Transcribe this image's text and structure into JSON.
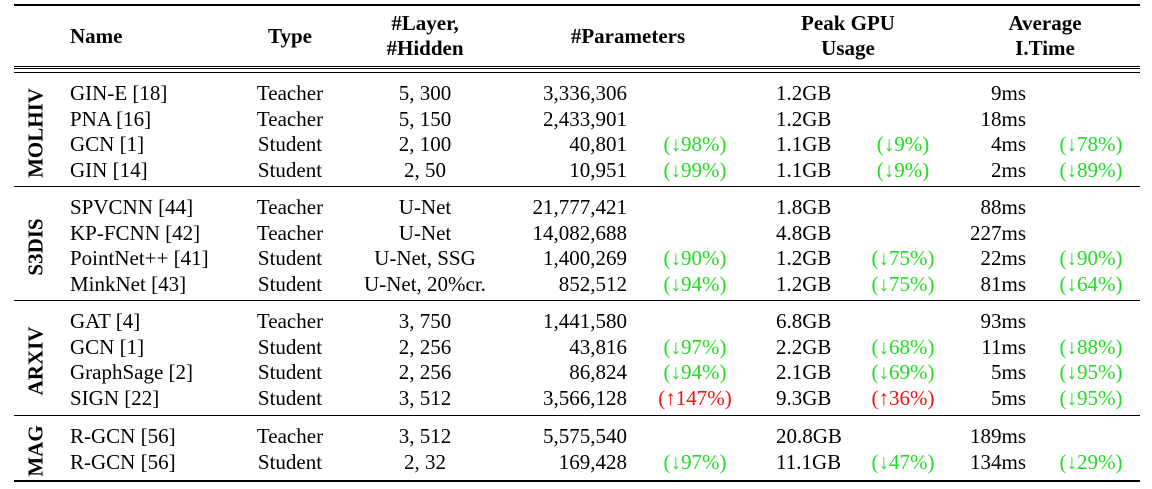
{
  "header": {
    "name": "Name",
    "type": "Type",
    "layer_1": "#Layer,",
    "layer_2": "#Hidden",
    "params": "#Parameters",
    "gpu_1": "Peak GPU",
    "gpu_2": "Usage",
    "time_1": "Average",
    "time_2": "I.Time"
  },
  "datasets": [
    {
      "label": "MOLHIV",
      "rows": [
        {
          "name": "GIN-E [18]",
          "type": "Teacher",
          "layer": "5, 300",
          "params": "3,336,306",
          "params_d": "",
          "params_dc": "",
          "gpu": "1.2GB",
          "gpu_d": "",
          "gpu_dc": "",
          "time": "9ms",
          "time_d": "",
          "time_dc": ""
        },
        {
          "name": "PNA [16]",
          "type": "Teacher",
          "layer": "5, 150",
          "params": "2,433,901",
          "params_d": "",
          "params_dc": "",
          "gpu": "1.2GB",
          "gpu_d": "",
          "gpu_dc": "",
          "time": "18ms",
          "time_d": "",
          "time_dc": ""
        },
        {
          "name": "GCN [1]",
          "type": "Student",
          "layer": "2, 100",
          "params": "40,801",
          "params_d": "(↓98%)",
          "params_dc": "down",
          "gpu": "1.1GB",
          "gpu_d": "(↓9%)",
          "gpu_dc": "down",
          "time": "4ms",
          "time_d": "(↓78%)",
          "time_dc": "down"
        },
        {
          "name": "GIN [14]",
          "type": "Student",
          "layer": "2, 50",
          "params": "10,951",
          "params_d": "(↓99%)",
          "params_dc": "down",
          "gpu": "1.1GB",
          "gpu_d": "(↓9%)",
          "gpu_dc": "down",
          "time": "2ms",
          "time_d": "(↓89%)",
          "time_dc": "down"
        }
      ]
    },
    {
      "label": "S3DIS",
      "rows": [
        {
          "name": "SPVCNN [44]",
          "type": "Teacher",
          "layer": "U-Net",
          "params": "21,777,421",
          "params_d": "",
          "params_dc": "",
          "gpu": "1.8GB",
          "gpu_d": "",
          "gpu_dc": "",
          "time": "88ms",
          "time_d": "",
          "time_dc": ""
        },
        {
          "name": "KP-FCNN [42]",
          "type": "Teacher",
          "layer": "U-Net",
          "params": "14,082,688",
          "params_d": "",
          "params_dc": "",
          "gpu": "4.8GB",
          "gpu_d": "",
          "gpu_dc": "",
          "time": "227ms",
          "time_d": "",
          "time_dc": ""
        },
        {
          "name": "PointNet++ [41]",
          "type": "Student",
          "layer": "U-Net, SSG",
          "params": "1,400,269",
          "params_d": "(↓90%)",
          "params_dc": "down",
          "gpu": "1.2GB",
          "gpu_d": "(↓75%)",
          "gpu_dc": "down",
          "time": "22ms",
          "time_d": "(↓90%)",
          "time_dc": "down"
        },
        {
          "name": "MinkNet [43]",
          "type": "Student",
          "layer": "U-Net, 20%cr.",
          "params": "852,512",
          "params_d": "(↓94%)",
          "params_dc": "down",
          "gpu": "1.2GB",
          "gpu_d": "(↓75%)",
          "gpu_dc": "down",
          "time": "81ms",
          "time_d": "(↓64%)",
          "time_dc": "down"
        }
      ]
    },
    {
      "label": "ARXIV",
      "rows": [
        {
          "name": "GAT [4]",
          "type": "Teacher",
          "layer": "3, 750",
          "params": "1,441,580",
          "params_d": "",
          "params_dc": "",
          "gpu": "6.8GB",
          "gpu_d": "",
          "gpu_dc": "",
          "time": "93ms",
          "time_d": "",
          "time_dc": ""
        },
        {
          "name": "GCN [1]",
          "type": "Student",
          "layer": "2, 256",
          "params": "43,816",
          "params_d": "(↓97%)",
          "params_dc": "down",
          "gpu": "2.2GB",
          "gpu_d": "(↓68%)",
          "gpu_dc": "down",
          "time": "11ms",
          "time_d": "(↓88%)",
          "time_dc": "down"
        },
        {
          "name": "GraphSage [2]",
          "type": "Student",
          "layer": "2, 256",
          "params": "86,824",
          "params_d": "(↓94%)",
          "params_dc": "down",
          "gpu": "2.1GB",
          "gpu_d": "(↓69%)",
          "gpu_dc": "down",
          "time": "5ms",
          "time_d": "(↓95%)",
          "time_dc": "down"
        },
        {
          "name": "SIGN [22]",
          "type": "Student",
          "layer": "3, 512",
          "params": "3,566,128",
          "params_d": "(↑147%)",
          "params_dc": "up",
          "gpu": "9.3GB",
          "gpu_d": "(↑36%)",
          "gpu_dc": "up",
          "time": "5ms",
          "time_d": "(↓95%)",
          "time_dc": "down"
        }
      ]
    },
    {
      "label": "MAG",
      "rows": [
        {
          "name": "R-GCN [56]",
          "type": "Teacher",
          "layer": "3, 512",
          "params": "5,575,540",
          "params_d": "",
          "params_dc": "",
          "gpu": "20.8GB",
          "gpu_d": "",
          "gpu_dc": "",
          "time": "189ms",
          "time_d": "",
          "time_dc": ""
        },
        {
          "name": "R-GCN [56]",
          "type": "Student",
          "layer": "2, 32",
          "params": "169,428",
          "params_d": "(↓97%)",
          "params_dc": "down",
          "gpu": "11.1GB",
          "gpu_d": "(↓47%)",
          "gpu_dc": "down",
          "time": "134ms",
          "time_d": "(↓29%)",
          "time_dc": "down"
        }
      ]
    }
  ],
  "colors": {
    "decrease": "#22dd22",
    "increase": "#ee1111"
  }
}
